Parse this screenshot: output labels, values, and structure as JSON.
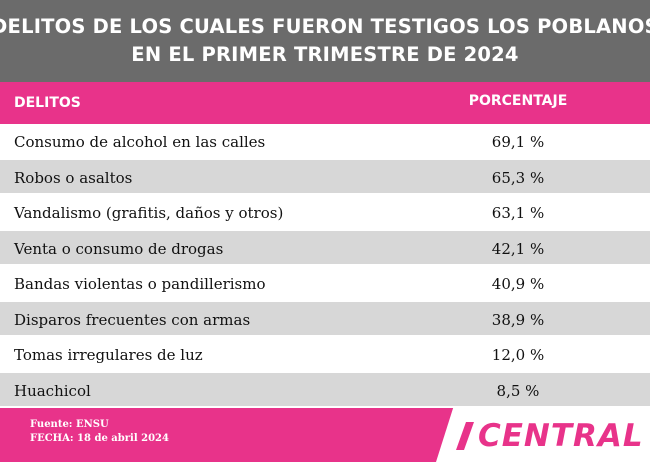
{
  "title": {
    "line1": "DELITOS DE LOS CUALES FUERON TESTIGOS LOS POBLANOS",
    "line2": "EN EL PRIMER TRIMESTRE DE 2024"
  },
  "header": {
    "crime": "DELITOS",
    "percent": "PORCENTAJE"
  },
  "rows": [
    {
      "crime": "Consumo de alcohol en las calles",
      "percent": "69,1 %"
    },
    {
      "crime": "Robos o asaltos",
      "percent": "65,3 %"
    },
    {
      "crime": "Vandalismo (grafitis, daños y otros)",
      "percent": "63,1 %"
    },
    {
      "crime": "Venta o consumo de drogas",
      "percent": "42,1 %"
    },
    {
      "crime": "Bandas violentas o pandillerismo",
      "percent": "40,9 %"
    },
    {
      "crime": "Disparos frecuentes con armas",
      "percent": "38,9 %"
    },
    {
      "crime": "Tomas irregulares de luz",
      "percent": "12,0 %"
    },
    {
      "crime": "Huachicol",
      "percent": "8,5 %"
    }
  ],
  "footer": {
    "source": "Fuente: ENSU",
    "date": "FECHA: 18 de abril 2024",
    "brand": "CENTRAL"
  },
  "colors": {
    "accent": "#e8338a",
    "title_bg": "#6b6b6b",
    "row_alt": "#d7d7d7"
  },
  "chart_data": {
    "type": "table",
    "title": "DELITOS DE LOS CUALES FUERON TESTIGOS LOS POBLANOS EN EL PRIMER TRIMESTRE DE 2024",
    "columns": [
      "DELITOS",
      "PORCENTAJE"
    ],
    "categories": [
      "Consumo de alcohol en las calles",
      "Robos o asaltos",
      "Vandalismo (grafitis, daños y otros)",
      "Venta o consumo de drogas",
      "Bandas violentas o pandillerismo",
      "Disparos frecuentes con armas",
      "Tomas irregulares de luz",
      "Huachicol"
    ],
    "values": [
      69.1,
      65.3,
      63.1,
      42.1,
      40.9,
      38.9,
      12.0,
      8.5
    ]
  }
}
